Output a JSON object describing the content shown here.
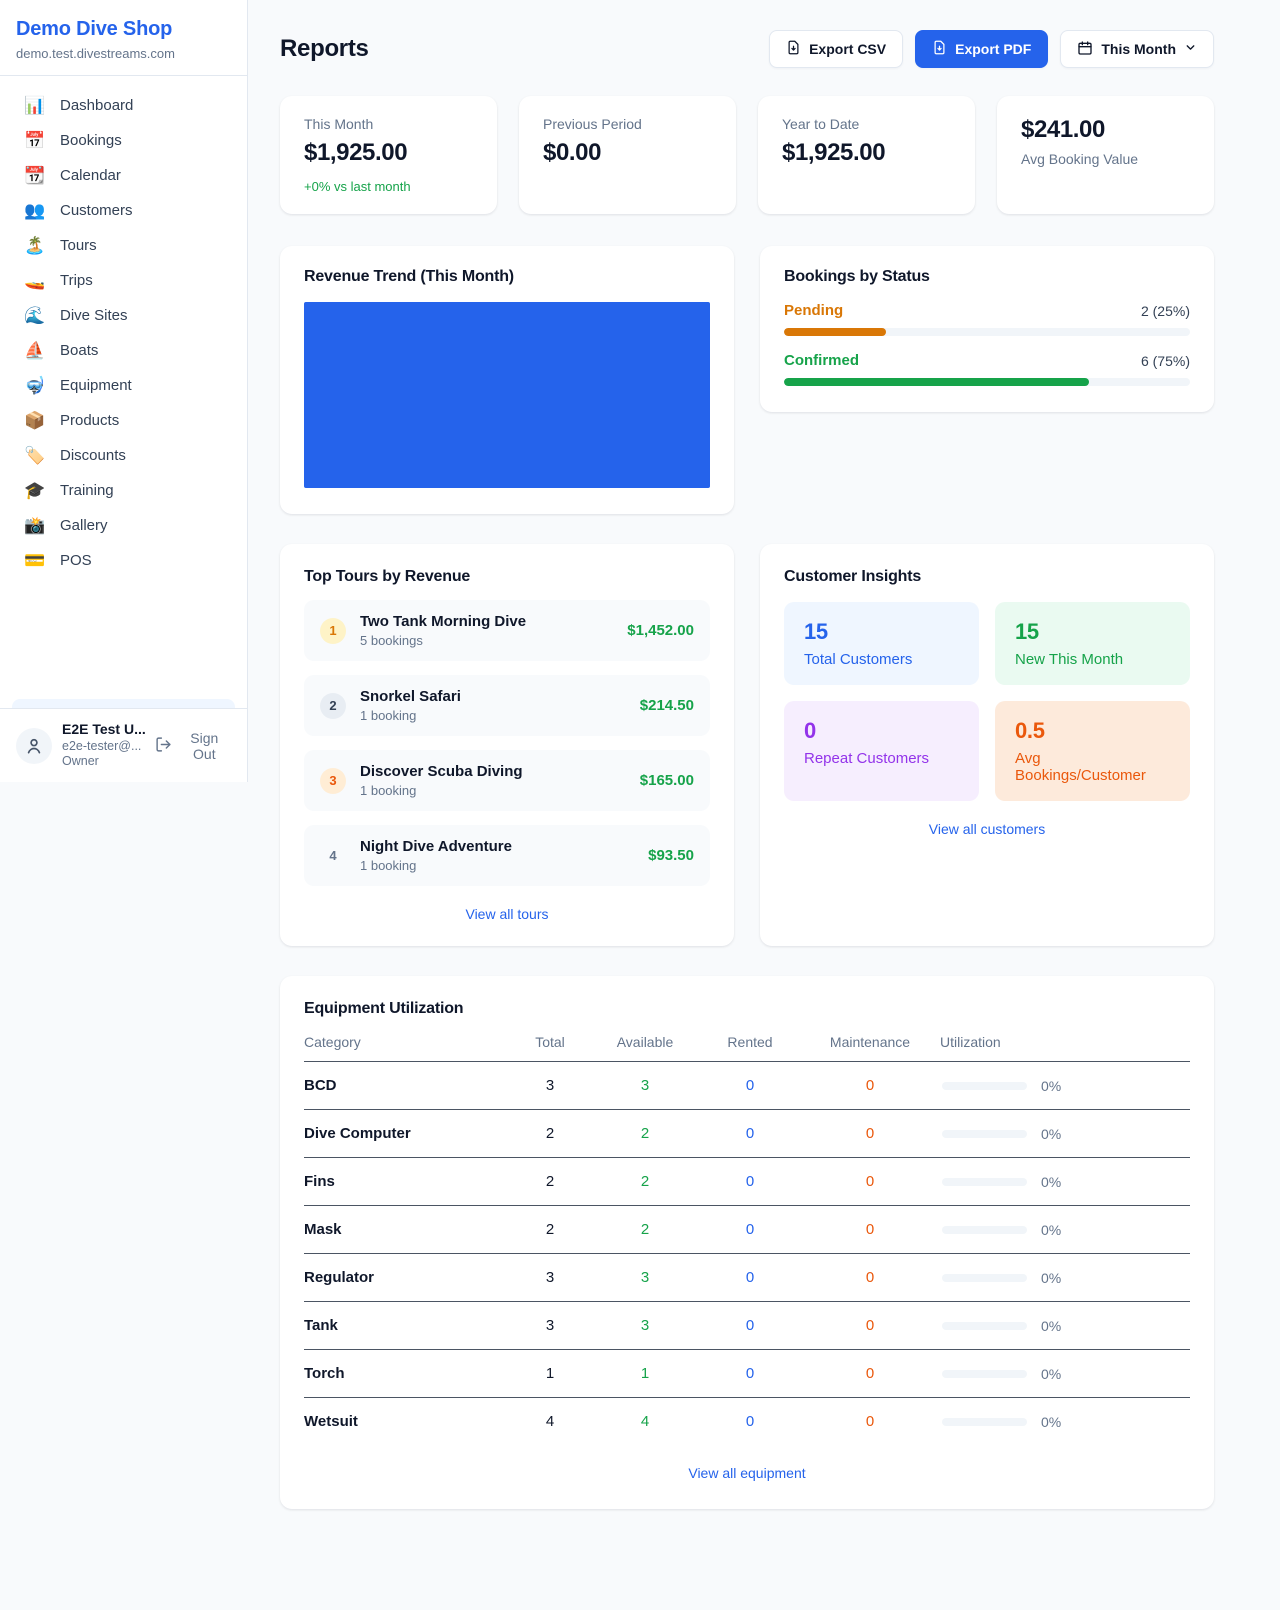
{
  "sidebar": {
    "brand": {
      "name": "Demo Dive Shop",
      "domain": "demo.test.divestreams.com"
    },
    "items": [
      {
        "icon_name": "dashboard-icon",
        "glyph": "📊",
        "label": "Dashboard"
      },
      {
        "icon_name": "bookings-icon",
        "glyph": "📅",
        "label": "Bookings"
      },
      {
        "icon_name": "calendar-icon",
        "glyph": "📆",
        "label": "Calendar"
      },
      {
        "icon_name": "customers-icon",
        "glyph": "👥",
        "label": "Customers"
      },
      {
        "icon_name": "tours-icon",
        "glyph": "🏝️",
        "label": "Tours"
      },
      {
        "icon_name": "trips-icon",
        "glyph": "🚤",
        "label": "Trips"
      },
      {
        "icon_name": "dive-sites-icon",
        "glyph": "🌊",
        "label": "Dive Sites"
      },
      {
        "icon_name": "boats-icon",
        "glyph": "⛵",
        "label": "Boats"
      },
      {
        "icon_name": "equipment-icon",
        "glyph": "🤿",
        "label": "Equipment"
      },
      {
        "icon_name": "products-icon",
        "glyph": "📦",
        "label": "Products"
      },
      {
        "icon_name": "discounts-icon",
        "glyph": "🏷️",
        "label": "Discounts"
      },
      {
        "icon_name": "training-icon",
        "glyph": "🎓",
        "label": "Training"
      },
      {
        "icon_name": "gallery-icon",
        "glyph": "📸",
        "label": "Gallery"
      },
      {
        "icon_name": "pos-icon",
        "glyph": "💳",
        "label": "POS"
      }
    ],
    "user": {
      "name": "E2E Test U...",
      "email": "e2e-tester@...",
      "role": "Owner",
      "sign_out_label": "Sign Out"
    }
  },
  "header": {
    "title": "Reports",
    "export_csv_label": "Export CSV",
    "export_pdf_label": "Export PDF",
    "period_label": "This Month"
  },
  "stats": [
    {
      "label": "This Month",
      "value": "$1,925.00",
      "delta": "+0% vs last month",
      "layout": "label-first"
    },
    {
      "label": "Previous Period",
      "value": "$0.00",
      "delta": "",
      "layout": "label-first"
    },
    {
      "label": "Year to Date",
      "value": "$1,925.00",
      "delta": "",
      "layout": "label-first"
    },
    {
      "label": "Avg Booking Value",
      "value": "$241.00",
      "delta": "",
      "layout": "value-first"
    }
  ],
  "revenue_trend": {
    "title": "Revenue Trend (This Month)",
    "bar_color": "#2563eb"
  },
  "bookings_by_status": {
    "title": "Bookings by Status",
    "rows": [
      {
        "label": "Pending",
        "count_text": "2 (25%)",
        "pct": 25,
        "color": "#d97706"
      },
      {
        "label": "Confirmed",
        "count_text": "6 (75%)",
        "pct": 75,
        "color": "#16a34a"
      }
    ]
  },
  "top_tours": {
    "title": "Top Tours by Revenue",
    "view_all_label": "View all tours",
    "items": [
      {
        "rank": "1",
        "rank_class": "r1",
        "name": "Two Tank Morning Dive",
        "bookings": "5 bookings",
        "amount": "$1,452.00"
      },
      {
        "rank": "2",
        "rank_class": "r2",
        "name": "Snorkel Safari",
        "bookings": "1 booking",
        "amount": "$214.50"
      },
      {
        "rank": "3",
        "rank_class": "r3",
        "name": "Discover Scuba Diving",
        "bookings": "1 booking",
        "amount": "$165.00"
      },
      {
        "rank": "4",
        "rank_class": "r4",
        "name": "Night Dive Adventure",
        "bookings": "1 booking",
        "amount": "$93.50"
      }
    ]
  },
  "customer_insights": {
    "title": "Customer Insights",
    "view_all_label": "View all customers",
    "tiles": [
      {
        "value": "15",
        "label": "Total Customers",
        "scheme": "blue"
      },
      {
        "value": "15",
        "label": "New This Month",
        "scheme": "green"
      },
      {
        "value": "0",
        "label": "Repeat Customers",
        "scheme": "purple"
      },
      {
        "value": "0.5",
        "label": "Avg Bookings/Customer",
        "scheme": "orange"
      }
    ]
  },
  "equipment": {
    "title": "Equipment Utilization",
    "view_all_label": "View all equipment",
    "columns": [
      "Category",
      "Total",
      "Available",
      "Rented",
      "Maintenance",
      "Utilization"
    ],
    "rows": [
      {
        "category": "BCD",
        "total": "3",
        "available": "3",
        "rented": "0",
        "maintenance": "0",
        "utilization": "0%",
        "pct": 0
      },
      {
        "category": "Dive Computer",
        "total": "2",
        "available": "2",
        "rented": "0",
        "maintenance": "0",
        "utilization": "0%",
        "pct": 0
      },
      {
        "category": "Fins",
        "total": "2",
        "available": "2",
        "rented": "0",
        "maintenance": "0",
        "utilization": "0%",
        "pct": 0
      },
      {
        "category": "Mask",
        "total": "2",
        "available": "2",
        "rented": "0",
        "maintenance": "0",
        "utilization": "0%",
        "pct": 0
      },
      {
        "category": "Regulator",
        "total": "3",
        "available": "3",
        "rented": "0",
        "maintenance": "0",
        "utilization": "0%",
        "pct": 0
      },
      {
        "category": "Tank",
        "total": "3",
        "available": "3",
        "rented": "0",
        "maintenance": "0",
        "utilization": "0%",
        "pct": 0
      },
      {
        "category": "Torch",
        "total": "1",
        "available": "1",
        "rented": "0",
        "maintenance": "0",
        "utilization": "0%",
        "pct": 0
      },
      {
        "category": "Wetsuit",
        "total": "4",
        "available": "4",
        "rented": "0",
        "maintenance": "0",
        "utilization": "0%",
        "pct": 0
      }
    ]
  },
  "colors": {
    "accent": "#2563eb",
    "success": "#16a34a",
    "warning": "#d97706",
    "danger_orange": "#ea580c",
    "purple": "#9333ea"
  }
}
